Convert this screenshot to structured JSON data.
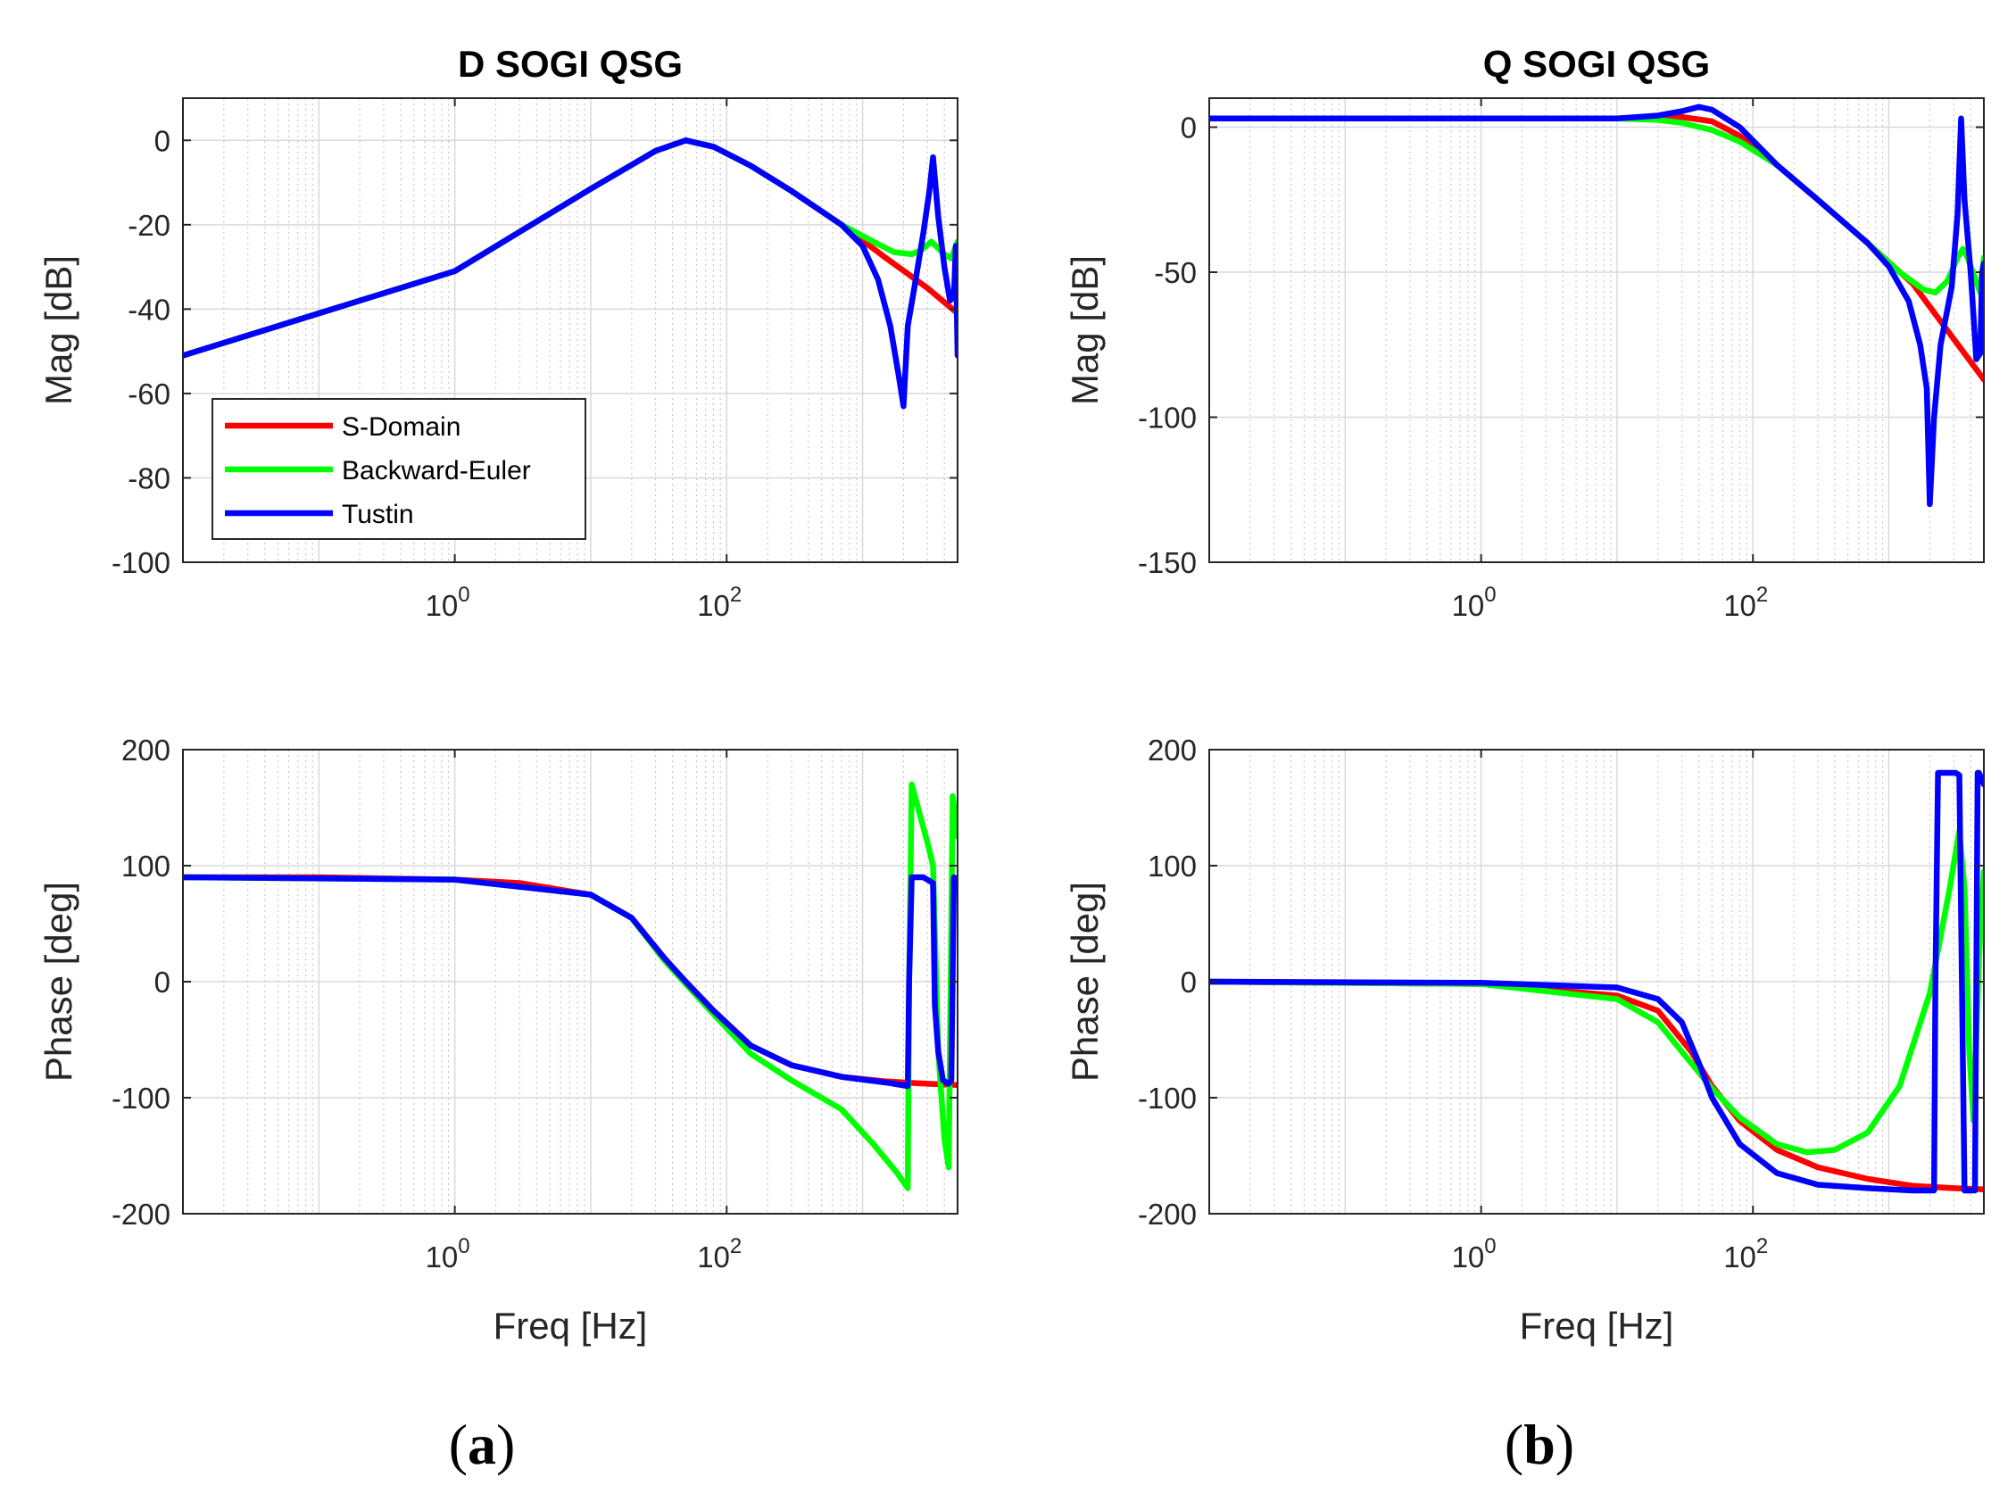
{
  "chart_data": [
    {
      "id": "a_mag",
      "type": "line",
      "title": "D SOGI QSG",
      "xlabel": "",
      "ylabel": "Mag [dB]",
      "xscale": "log",
      "xlim": [
        0.01,
        5000
      ],
      "ylim": [
        -100,
        10
      ],
      "yticks": [
        0,
        -20,
        -40,
        -60,
        -80,
        -100
      ],
      "xticks": [
        {
          "base": "10",
          "exp": "0",
          "value": 1
        },
        {
          "base": "10",
          "exp": "2",
          "value": 100
        }
      ],
      "grid": true,
      "legend": {
        "placement": "bottom-left",
        "entries": [
          "S-Domain",
          "Backward-Euler",
          "Tustin"
        ]
      },
      "series": [
        {
          "name": "S-Domain",
          "color": "#ff0000",
          "x": [
            0.01,
            0.1,
            1,
            10,
            30,
            50,
            80,
            150,
            300,
            700,
            1500,
            3000,
            5000
          ],
          "y": [
            -51,
            -41,
            -31,
            -11.5,
            -2.5,
            0,
            -1.5,
            -6,
            -12,
            -20,
            -28,
            -35,
            -41
          ]
        },
        {
          "name": "Backward-Euler",
          "color": "#00ff00",
          "x": [
            0.01,
            1,
            10,
            30,
            50,
            80,
            150,
            300,
            700,
            1200,
            1700,
            2300,
            2700,
            3200,
            4000,
            4500,
            5000
          ],
          "y": [
            -51,
            -31,
            -11.5,
            -2.5,
            0,
            -1.5,
            -6,
            -12,
            -20,
            -24,
            -26.5,
            -27,
            -26,
            -24,
            -27,
            -28,
            -24
          ]
        },
        {
          "name": "Tustin",
          "color": "#0000ff",
          "x": [
            0.01,
            1,
            10,
            30,
            50,
            80,
            150,
            300,
            700,
            1000,
            1300,
            1600,
            1850,
            2000,
            2150,
            2400,
            2800,
            3100,
            3300,
            3600,
            4000,
            4400,
            4700,
            4850,
            5000
          ],
          "y": [
            -51,
            -31,
            -11.5,
            -2.5,
            0,
            -1.5,
            -6,
            -12,
            -20,
            -25,
            -33,
            -44,
            -56,
            -63,
            -44,
            -35,
            -22,
            -12,
            -4,
            -18,
            -30,
            -38,
            -37,
            -25,
            -51
          ]
        }
      ]
    },
    {
      "id": "a_phase",
      "type": "line",
      "title": "",
      "xlabel": "Freq [Hz]",
      "ylabel": "Phase [deg]",
      "xscale": "log",
      "xlim": [
        0.01,
        5000
      ],
      "ylim": [
        -200,
        200
      ],
      "yticks": [
        200,
        100,
        0,
        -100,
        -200
      ],
      "xticks": [
        {
          "base": "10",
          "exp": "0",
          "value": 1
        },
        {
          "base": "10",
          "exp": "2",
          "value": 100
        }
      ],
      "grid": true,
      "series": [
        {
          "name": "S-Domain",
          "color": "#ff0000",
          "x": [
            0.01,
            0.1,
            1,
            3,
            10,
            20,
            35,
            50,
            80,
            150,
            300,
            700,
            1500,
            3000,
            5000
          ],
          "y": [
            90,
            90,
            88,
            85,
            75,
            55,
            20,
            0,
            -25,
            -55,
            -72,
            -82,
            -86,
            -88,
            -89
          ]
        },
        {
          "name": "Backward-Euler",
          "color": "#00ff00",
          "x": [
            0.01,
            1,
            10,
            20,
            35,
            50,
            80,
            150,
            300,
            700,
            1200,
            1800,
            2150,
            2200,
            2300,
            3000,
            3300,
            3600,
            4000,
            4300,
            4600,
            5000
          ],
          "y": [
            90,
            88,
            75,
            55,
            18,
            -2,
            -28,
            -62,
            -85,
            -110,
            -140,
            -165,
            -178,
            0,
            170,
            120,
            100,
            -60,
            -135,
            -160,
            160,
            125
          ]
        },
        {
          "name": "Tustin",
          "color": "#0000ff",
          "x": [
            0.01,
            1,
            10,
            20,
            35,
            50,
            80,
            150,
            300,
            700,
            1500,
            2150,
            2200,
            2300,
            2800,
            3300,
            3400,
            3600,
            3900,
            4300,
            4500,
            4700,
            5000
          ],
          "y": [
            90,
            88,
            75,
            55,
            20,
            0,
            -25,
            -55,
            -72,
            -82,
            -87,
            -90,
            0,
            90,
            90,
            85,
            -20,
            -60,
            -85,
            -88,
            -85,
            90,
            88
          ]
        }
      ]
    },
    {
      "id": "b_mag",
      "type": "line",
      "title": "Q SOGI QSG",
      "xlabel": "",
      "ylabel": "Mag [dB]",
      "xscale": "log",
      "xlim": [
        0.01,
        5000
      ],
      "ylim": [
        -150,
        10
      ],
      "yticks": [
        0,
        -50,
        -100,
        -150
      ],
      "xticks": [
        {
          "base": "10",
          "exp": "0",
          "value": 1
        },
        {
          "base": "10",
          "exp": "2",
          "value": 100
        }
      ],
      "grid": true,
      "series": [
        {
          "name": "S-Domain",
          "color": "#ff0000",
          "x": [
            0.01,
            1,
            10,
            30,
            50,
            80,
            150,
            300,
            700,
            1500,
            3000,
            5000
          ],
          "y": [
            3,
            3,
            3,
            3.5,
            2,
            -3,
            -13,
            -25,
            -40,
            -54,
            -73,
            -87
          ]
        },
        {
          "name": "Backward-Euler",
          "color": "#00ff00",
          "x": [
            0.01,
            1,
            10,
            20,
            30,
            50,
            80,
            150,
            300,
            700,
            1200,
            1800,
            2200,
            2700,
            3200,
            3500,
            3800,
            4300,
            4700,
            5000
          ],
          "y": [
            3,
            3,
            3,
            2.5,
            1.5,
            -1,
            -5,
            -13,
            -25,
            -40,
            -50,
            -56,
            -57,
            -53,
            -45,
            -42,
            -45,
            -52,
            -57,
            -45
          ]
        },
        {
          "name": "Tustin",
          "color": "#0000ff",
          "x": [
            0.01,
            1,
            10,
            20,
            30,
            40,
            50,
            80,
            150,
            300,
            700,
            1000,
            1400,
            1700,
            1900,
            2000,
            2150,
            2400,
            2900,
            3200,
            3400,
            3600,
            4000,
            4400,
            4700,
            4850,
            5000
          ],
          "y": [
            3,
            3,
            3,
            4,
            5.5,
            7,
            6,
            0,
            -13,
            -25,
            -40,
            -48,
            -60,
            -75,
            -90,
            -130,
            -100,
            -75,
            -55,
            -30,
            3,
            -25,
            -50,
            -80,
            -78,
            -50,
            -47
          ]
        }
      ]
    },
    {
      "id": "b_phase",
      "type": "line",
      "title": "",
      "xlabel": "Freq [Hz]",
      "ylabel": "Phase [deg]",
      "xscale": "log",
      "xlim": [
        0.01,
        5000
      ],
      "ylim": [
        -200,
        200
      ],
      "yticks": [
        200,
        100,
        0,
        -100,
        -200
      ],
      "xticks": [
        {
          "base": "10",
          "exp": "0",
          "value": 1
        },
        {
          "base": "10",
          "exp": "2",
          "value": 100
        }
      ],
      "grid": true,
      "series": [
        {
          "name": "S-Domain",
          "color": "#ff0000",
          "x": [
            0.01,
            1,
            10,
            20,
            35,
            50,
            80,
            150,
            300,
            700,
            1500,
            3000,
            5000
          ],
          "y": [
            0,
            -2,
            -12,
            -25,
            -60,
            -90,
            -120,
            -145,
            -160,
            -170,
            -176,
            -178,
            -179
          ]
        },
        {
          "name": "Backward-Euler",
          "color": "#00ff00",
          "x": [
            0.01,
            1,
            10,
            20,
            35,
            50,
            80,
            150,
            250,
            400,
            700,
            1200,
            2000,
            2800,
            3300,
            3600,
            3900,
            4200,
            4600,
            5000
          ],
          "y": [
            0,
            -2,
            -15,
            -35,
            -70,
            -92,
            -117,
            -140,
            -147,
            -145,
            -130,
            -90,
            -10,
            80,
            130,
            80,
            -60,
            -120,
            20,
            95
          ]
        },
        {
          "name": "Tustin",
          "color": "#0000ff",
          "x": [
            0.01,
            1,
            10,
            20,
            30,
            40,
            50,
            80,
            150,
            300,
            700,
            1500,
            2000,
            2150,
            2200,
            2300,
            2600,
            3100,
            3300,
            3600,
            3900,
            4100,
            4300,
            4500,
            4600,
            5000
          ],
          "y": [
            0,
            -1,
            -5,
            -15,
            -35,
            -70,
            -100,
            -140,
            -165,
            -175,
            -178,
            -180,
            -180,
            -180,
            0,
            180,
            180,
            180,
            178,
            -180,
            -180,
            -180,
            -180,
            180,
            180,
            170
          ]
        }
      ]
    }
  ],
  "captions": {
    "a_open": "(",
    "a_letter": "a",
    "a_close": ")",
    "b_open": "(",
    "b_letter": "b",
    "b_close": ")"
  }
}
